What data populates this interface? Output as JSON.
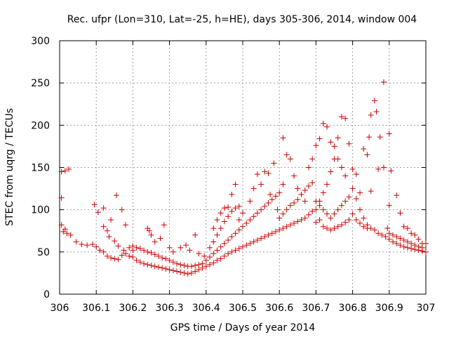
{
  "chart_data": {
    "type": "scatter",
    "title": "Rec. ufpr (Lon=310, Lat=-25, h=HE), days 305-306, 2014, window 004",
    "xlabel": "GPS time / Days of year 2014",
    "ylabel": "STEC from uqrg / TECUs",
    "xlim": [
      306,
      307
    ],
    "ylim": [
      0,
      300
    ],
    "xticks": [
      306,
      306.1,
      306.2,
      306.3,
      306.4,
      306.5,
      306.6,
      306.7,
      306.8,
      306.9,
      307
    ],
    "xtick_labels": [
      "306",
      "306.1",
      "306.2",
      "306.3",
      "306.4",
      "306.5",
      "306.6",
      "306.7",
      "306.8",
      "306.9",
      "307"
    ],
    "yticks": [
      0,
      50,
      100,
      150,
      200,
      250,
      300
    ],
    "ytick_labels": [
      "0",
      "50",
      "100",
      "150",
      "200",
      "250",
      "300"
    ],
    "grid": true,
    "marker": "plus",
    "color": "#cc0000",
    "points": [
      [
        306.005,
        145
      ],
      [
        306.015,
        146
      ],
      [
        306.025,
        148
      ],
      [
        306.005,
        114
      ],
      [
        306.005,
        82
      ],
      [
        306.01,
        74
      ],
      [
        306.015,
        77
      ],
      [
        306.02,
        72
      ],
      [
        306.03,
        70
      ],
      [
        306.045,
        62
      ],
      [
        306.06,
        59
      ],
      [
        306.075,
        58
      ],
      [
        306.09,
        59
      ],
      [
        306.1,
        56
      ],
      [
        306.11,
        52
      ],
      [
        306.12,
        50
      ],
      [
        306.13,
        45
      ],
      [
        306.14,
        43
      ],
      [
        306.15,
        42
      ],
      [
        306.16,
        41
      ],
      [
        306.17,
        46
      ],
      [
        306.18,
        48
      ],
      [
        306.19,
        45
      ],
      [
        306.095,
        106
      ],
      [
        306.105,
        97
      ],
      [
        306.12,
        102
      ],
      [
        306.14,
        88
      ],
      [
        306.155,
        117
      ],
      [
        306.17,
        100
      ],
      [
        306.18,
        82
      ],
      [
        306.12,
        80
      ],
      [
        306.13,
        75
      ],
      [
        306.135,
        68
      ],
      [
        306.15,
        63
      ],
      [
        306.16,
        57
      ],
      [
        306.175,
        52
      ],
      [
        306.19,
        55
      ],
      [
        306.2,
        52
      ],
      [
        306.2,
        44
      ],
      [
        306.21,
        40
      ],
      [
        306.22,
        38
      ],
      [
        306.23,
        36
      ],
      [
        306.24,
        35
      ],
      [
        306.25,
        34
      ],
      [
        306.26,
        33
      ],
      [
        306.27,
        32
      ],
      [
        306.28,
        31
      ],
      [
        306.29,
        30
      ],
      [
        306.3,
        29
      ],
      [
        306.31,
        28
      ],
      [
        306.32,
        27
      ],
      [
        306.33,
        26
      ],
      [
        306.34,
        25
      ],
      [
        306.35,
        24
      ],
      [
        306.36,
        25
      ],
      [
        306.37,
        27
      ],
      [
        306.38,
        29
      ],
      [
        306.39,
        31
      ],
      [
        306.2,
        57
      ],
      [
        306.21,
        55
      ],
      [
        306.22,
        54
      ],
      [
        306.23,
        52
      ],
      [
        306.24,
        50
      ],
      [
        306.25,
        49
      ],
      [
        306.26,
        47
      ],
      [
        306.27,
        45
      ],
      [
        306.28,
        43
      ],
      [
        306.29,
        42
      ],
      [
        306.3,
        40
      ],
      [
        306.31,
        38
      ],
      [
        306.32,
        36
      ],
      [
        306.33,
        35
      ],
      [
        306.34,
        34
      ],
      [
        306.35,
        33
      ],
      [
        306.36,
        33
      ],
      [
        306.37,
        34
      ],
      [
        306.38,
        35
      ],
      [
        306.39,
        36
      ],
      [
        306.24,
        78
      ],
      [
        306.245,
        75
      ],
      [
        306.25,
        70
      ],
      [
        306.26,
        62
      ],
      [
        306.275,
        66
      ],
      [
        306.285,
        82
      ],
      [
        306.3,
        55
      ],
      [
        306.31,
        50
      ],
      [
        306.33,
        55
      ],
      [
        306.345,
        58
      ],
      [
        306.355,
        52
      ],
      [
        306.37,
        70
      ],
      [
        306.38,
        48
      ],
      [
        306.395,
        45
      ],
      [
        306.4,
        33
      ],
      [
        306.41,
        35
      ],
      [
        306.42,
        37
      ],
      [
        306.43,
        40
      ],
      [
        306.44,
        42
      ],
      [
        306.45,
        45
      ],
      [
        306.46,
        48
      ],
      [
        306.47,
        50
      ],
      [
        306.48,
        52
      ],
      [
        306.49,
        54
      ],
      [
        306.4,
        40
      ],
      [
        306.41,
        44
      ],
      [
        306.42,
        48
      ],
      [
        306.43,
        52
      ],
      [
        306.44,
        56
      ],
      [
        306.45,
        60
      ],
      [
        306.46,
        64
      ],
      [
        306.47,
        68
      ],
      [
        306.48,
        72
      ],
      [
        306.49,
        76
      ],
      [
        306.41,
        55
      ],
      [
        306.42,
        62
      ],
      [
        306.43,
        70
      ],
      [
        306.44,
        78
      ],
      [
        306.45,
        86
      ],
      [
        306.46,
        92
      ],
      [
        306.47,
        98
      ],
      [
        306.48,
        102
      ],
      [
        306.49,
        104
      ],
      [
        306.42,
        78
      ],
      [
        306.43,
        88
      ],
      [
        306.44,
        96
      ],
      [
        306.45,
        102
      ],
      [
        306.46,
        103
      ],
      [
        306.47,
        118
      ],
      [
        306.48,
        130
      ],
      [
        306.49,
        88
      ],
      [
        306.5,
        96
      ],
      [
        306.5,
        56
      ],
      [
        306.51,
        58
      ],
      [
        306.52,
        60
      ],
      [
        306.53,
        62
      ],
      [
        306.54,
        64
      ],
      [
        306.55,
        66
      ],
      [
        306.56,
        68
      ],
      [
        306.57,
        70
      ],
      [
        306.58,
        72
      ],
      [
        306.59,
        74
      ],
      [
        306.5,
        80
      ],
      [
        306.51,
        84
      ],
      [
        306.52,
        88
      ],
      [
        306.53,
        92
      ],
      [
        306.54,
        96
      ],
      [
        306.55,
        100
      ],
      [
        306.56,
        104
      ],
      [
        306.57,
        108
      ],
      [
        306.58,
        112
      ],
      [
        306.59,
        116
      ],
      [
        306.52,
        110
      ],
      [
        306.53,
        125
      ],
      [
        306.54,
        142
      ],
      [
        306.55,
        130
      ],
      [
        306.56,
        145
      ],
      [
        306.57,
        143
      ],
      [
        306.575,
        118
      ],
      [
        306.585,
        155
      ],
      [
        306.595,
        100
      ],
      [
        306.6,
        76
      ],
      [
        306.61,
        78
      ],
      [
        306.62,
        80
      ],
      [
        306.63,
        82
      ],
      [
        306.64,
        84
      ],
      [
        306.65,
        86
      ],
      [
        306.66,
        88
      ],
      [
        306.67,
        90
      ],
      [
        306.68,
        94
      ],
      [
        306.69,
        98
      ],
      [
        306.6,
        120
      ],
      [
        306.61,
        130
      ],
      [
        306.62,
        165
      ],
      [
        306.63,
        160
      ],
      [
        306.64,
        140
      ],
      [
        306.65,
        125
      ],
      [
        306.66,
        118
      ],
      [
        306.67,
        110
      ],
      [
        306.68,
        150
      ],
      [
        306.69,
        160
      ],
      [
        306.6,
        90
      ],
      [
        306.61,
        95
      ],
      [
        306.62,
        100
      ],
      [
        306.63,
        105
      ],
      [
        306.64,
        108
      ],
      [
        306.65,
        112
      ],
      [
        306.66,
        118
      ],
      [
        306.67,
        123
      ],
      [
        306.68,
        128
      ],
      [
        306.69,
        132
      ],
      [
        306.61,
        185
      ],
      [
        306.7,
        100
      ],
      [
        306.71,
        110
      ],
      [
        306.72,
        120
      ],
      [
        306.73,
        130
      ],
      [
        306.74,
        145
      ],
      [
        306.75,
        160
      ],
      [
        306.76,
        185
      ],
      [
        306.77,
        210
      ],
      [
        306.78,
        208
      ],
      [
        306.7,
        176
      ],
      [
        306.71,
        184
      ],
      [
        306.72,
        202
      ],
      [
        306.73,
        198
      ],
      [
        306.74,
        180
      ],
      [
        306.75,
        175
      ],
      [
        306.76,
        160
      ],
      [
        306.77,
        150
      ],
      [
        306.78,
        140
      ],
      [
        306.79,
        178
      ],
      [
        306.7,
        85
      ],
      [
        306.71,
        88
      ],
      [
        306.72,
        80
      ],
      [
        306.73,
        78
      ],
      [
        306.74,
        76
      ],
      [
        306.75,
        78
      ],
      [
        306.76,
        80
      ],
      [
        306.77,
        82
      ],
      [
        306.78,
        85
      ],
      [
        306.79,
        88
      ],
      [
        306.7,
        110
      ],
      [
        306.71,
        105
      ],
      [
        306.72,
        100
      ],
      [
        306.73,
        95
      ],
      [
        306.74,
        90
      ],
      [
        306.75,
        95
      ],
      [
        306.76,
        100
      ],
      [
        306.77,
        105
      ],
      [
        306.78,
        110
      ],
      [
        306.79,
        115
      ],
      [
        306.8,
        148
      ],
      [
        306.81,
        142
      ],
      [
        306.82,
        120
      ],
      [
        306.83,
        172
      ],
      [
        306.84,
        165
      ],
      [
        306.845,
        186
      ],
      [
        306.85,
        212
      ],
      [
        306.86,
        229
      ],
      [
        306.865,
        216
      ],
      [
        306.875,
        186
      ],
      [
        306.885,
        251
      ],
      [
        306.9,
        190
      ],
      [
        306.905,
        146
      ],
      [
        306.8,
        125
      ],
      [
        306.81,
        113
      ],
      [
        306.82,
        100
      ],
      [
        306.83,
        90
      ],
      [
        306.84,
        82
      ],
      [
        306.85,
        78
      ],
      [
        306.86,
        76
      ],
      [
        306.87,
        72
      ],
      [
        306.88,
        70
      ],
      [
        306.89,
        68
      ],
      [
        306.8,
        95
      ],
      [
        306.81,
        88
      ],
      [
        306.82,
        84
      ],
      [
        306.83,
        80
      ],
      [
        306.84,
        78
      ],
      [
        306.85,
        122
      ],
      [
        306.87,
        148
      ],
      [
        306.885,
        150
      ],
      [
        306.895,
        78
      ],
      [
        306.9,
        105
      ],
      [
        306.9,
        65
      ],
      [
        306.91,
        62
      ],
      [
        306.92,
        60
      ],
      [
        306.93,
        58
      ],
      [
        306.94,
        56
      ],
      [
        306.95,
        55
      ],
      [
        306.96,
        54
      ],
      [
        306.97,
        53
      ],
      [
        306.98,
        52
      ],
      [
        306.99,
        51
      ],
      [
        307.0,
        50
      ],
      [
        306.9,
        72
      ],
      [
        306.91,
        70
      ],
      [
        306.92,
        68
      ],
      [
        306.93,
        66
      ],
      [
        306.94,
        64
      ],
      [
        306.95,
        62
      ],
      [
        306.96,
        60
      ],
      [
        306.97,
        58
      ],
      [
        306.98,
        56
      ],
      [
        306.99,
        55
      ],
      [
        307.0,
        60
      ],
      [
        306.92,
        117
      ],
      [
        306.93,
        96
      ],
      [
        306.94,
        80
      ],
      [
        306.95,
        78
      ],
      [
        306.96,
        72
      ],
      [
        306.97,
        70
      ],
      [
        306.98,
        65
      ],
      [
        306.99,
        60
      ]
    ]
  }
}
